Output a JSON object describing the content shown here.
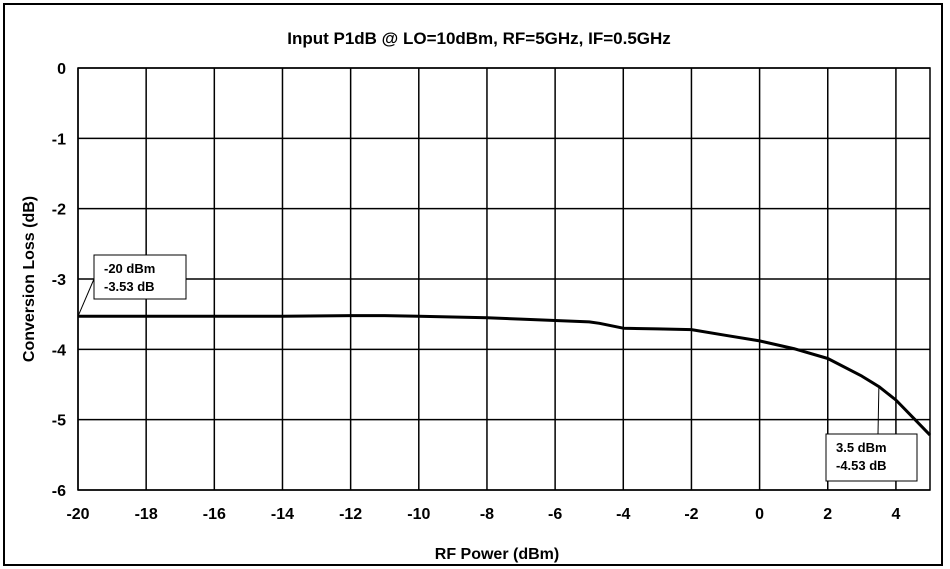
{
  "chart_data": {
    "type": "line",
    "title": "Input P1dB @ LO=10dBm, RF=5GHz, IF=0.5GHz",
    "xlabel": "RF Power (dBm)",
    "ylabel": "Conversion Loss (dB)",
    "xlim": [
      -20,
      5
    ],
    "ylim": [
      -6,
      0
    ],
    "xticks": [
      -20,
      -18,
      -16,
      -14,
      -12,
      -10,
      -8,
      -6,
      -4,
      -2,
      0,
      2,
      4
    ],
    "yticks": [
      0,
      -1,
      -2,
      -3,
      -4,
      -5,
      -6
    ],
    "grid": true,
    "series": [
      {
        "color": "#000000",
        "x": [
          -20,
          -18,
          -16,
          -14,
          -12,
          -11,
          -10,
          -9,
          -8,
          -7,
          -6,
          -5,
          -4.7,
          -4,
          -3,
          -2,
          -1,
          0,
          1,
          2,
          3,
          3.5,
          4,
          4.5,
          5
        ],
        "y": [
          -3.53,
          -3.53,
          -3.53,
          -3.53,
          -3.52,
          -3.52,
          -3.53,
          -3.54,
          -3.55,
          -3.57,
          -3.59,
          -3.61,
          -3.63,
          -3.7,
          -3.71,
          -3.72,
          -3.8,
          -3.88,
          -3.99,
          -4.13,
          -4.38,
          -4.53,
          -4.72,
          -4.97,
          -5.22
        ]
      }
    ],
    "annotations": [
      {
        "lines": [
          "-20 dBm",
          "-3.53 dB"
        ],
        "x": -20,
        "y": -3.53
      },
      {
        "lines": [
          "3.5 dBm",
          "-4.53 dB"
        ],
        "x": 3.5,
        "y": -4.53
      }
    ]
  }
}
